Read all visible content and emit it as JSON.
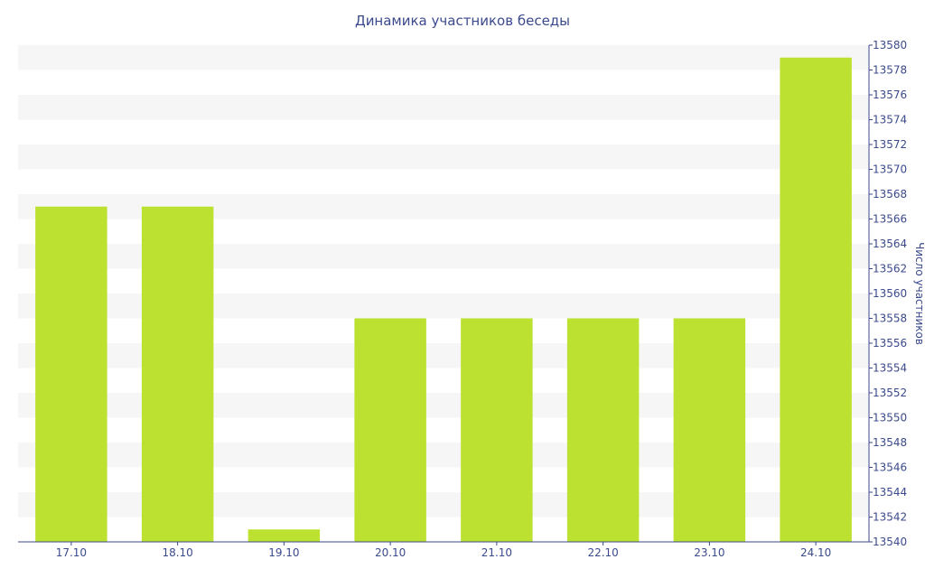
{
  "chart_data": {
    "type": "bar",
    "title": "Динамика участников беседы",
    "xlabel": "",
    "ylabel": "Число участников",
    "categories": [
      "17.10",
      "18.10",
      "19.10",
      "20.10",
      "21.10",
      "22.10",
      "23.10",
      "24.10"
    ],
    "values": [
      13567,
      13567,
      13541,
      13558,
      13558,
      13558,
      13558,
      13579
    ],
    "ylim": [
      13540,
      13580
    ],
    "y_ticks": [
      13540,
      13542,
      13544,
      13546,
      13548,
      13550,
      13552,
      13554,
      13556,
      13558,
      13560,
      13562,
      13564,
      13566,
      13568,
      13570,
      13572,
      13574,
      13576,
      13578,
      13580
    ],
    "y_axis_position": "right",
    "grid": "alternating horizontal bands",
    "bar_color": "#bde130",
    "band_color": "#f6f6f6",
    "text_color": "#3b4a8c"
  }
}
